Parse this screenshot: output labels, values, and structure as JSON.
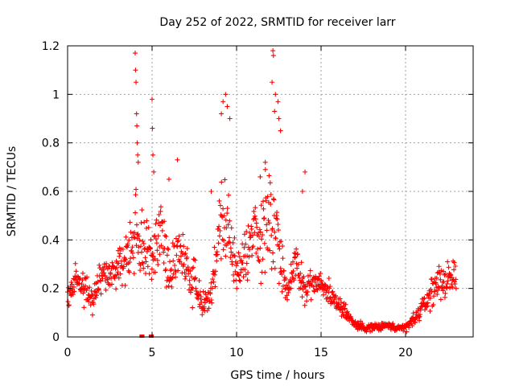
{
  "chart_data": {
    "type": "scatter",
    "title": "Day 252 of 2022, SRMTID for receiver larr",
    "xlabel": "GPS time / hours",
    "ylabel": "SRMTID / TECUs",
    "xlim": [
      0,
      24
    ],
    "ylim": [
      0,
      1.2
    ],
    "xticks": [
      0,
      5,
      10,
      15,
      20
    ],
    "xtick_labels": [
      "0",
      "5",
      "10",
      "15",
      "20"
    ],
    "yticks": [
      0,
      0.2,
      0.4,
      0.6,
      0.8,
      1,
      1.2
    ],
    "ytick_labels": [
      "0",
      "0.2",
      "0.4",
      "0.6",
      "0.8",
      "1",
      "1.2"
    ],
    "grid": true,
    "marker": "plus",
    "marker_color": "#ff0000",
    "series": [
      {
        "name": "SRMTID",
        "profile_description": "Dense scatter of 2-minute samples over 0-23 h",
        "envelope": {
          "t": [
            0,
            0.5,
            1,
            1.5,
            2,
            2.5,
            3,
            3.5,
            4,
            4.5,
            5,
            5.5,
            6,
            6.5,
            7,
            7.5,
            8,
            8.5,
            9,
            9.5,
            10,
            10.5,
            11,
            11.5,
            12,
            12.5,
            13,
            13.5,
            14,
            14.5,
            15,
            15.5,
            16,
            16.5,
            17,
            17.5,
            18,
            18.5,
            19,
            19.5,
            20,
            20.5,
            21,
            21.5,
            22,
            22.5,
            23
          ],
          "center": [
            0.16,
            0.24,
            0.2,
            0.15,
            0.27,
            0.25,
            0.3,
            0.32,
            0.44,
            0.38,
            0.3,
            0.45,
            0.25,
            0.38,
            0.28,
            0.25,
            0.12,
            0.17,
            0.45,
            0.48,
            0.25,
            0.32,
            0.42,
            0.38,
            0.55,
            0.35,
            0.2,
            0.3,
            0.2,
            0.22,
            0.22,
            0.18,
            0.14,
            0.1,
            0.05,
            0.04,
            0.04,
            0.04,
            0.05,
            0.03,
            0.04,
            0.07,
            0.12,
            0.18,
            0.24,
            0.22,
            0.26
          ],
          "spread": [
            0.06,
            0.1,
            0.12,
            0.08,
            0.1,
            0.1,
            0.14,
            0.15,
            0.25,
            0.2,
            0.2,
            0.18,
            0.12,
            0.16,
            0.15,
            0.15,
            0.08,
            0.1,
            0.3,
            0.3,
            0.12,
            0.2,
            0.22,
            0.25,
            0.35,
            0.2,
            0.1,
            0.14,
            0.1,
            0.1,
            0.08,
            0.07,
            0.06,
            0.05,
            0.03,
            0.025,
            0.025,
            0.025,
            0.025,
            0.02,
            0.025,
            0.04,
            0.06,
            0.08,
            0.1,
            0.1,
            0.1
          ]
        },
        "highlights": [
          {
            "t": 4.0,
            "v": 1.17
          },
          {
            "t": 4.02,
            "v": 1.1
          },
          {
            "t": 4.05,
            "v": 1.05
          },
          {
            "t": 4.08,
            "v": 0.92
          },
          {
            "t": 4.1,
            "v": 0.87
          },
          {
            "t": 4.12,
            "v": 0.8
          },
          {
            "t": 4.15,
            "v": 0.75
          },
          {
            "t": 4.18,
            "v": 0.72
          },
          {
            "t": 5.0,
            "v": 0.98
          },
          {
            "t": 5.02,
            "v": 0.86
          },
          {
            "t": 5.05,
            "v": 0.75
          },
          {
            "t": 5.1,
            "v": 0.68
          },
          {
            "t": 9.1,
            "v": 0.92
          },
          {
            "t": 9.2,
            "v": 0.97
          },
          {
            "t": 9.35,
            "v": 1.0
          },
          {
            "t": 9.45,
            "v": 0.95
          },
          {
            "t": 9.6,
            "v": 0.9
          },
          {
            "t": 12.15,
            "v": 1.18
          },
          {
            "t": 12.18,
            "v": 1.16
          },
          {
            "t": 12.1,
            "v": 1.05
          },
          {
            "t": 12.3,
            "v": 1.0
          },
          {
            "t": 12.45,
            "v": 0.97
          },
          {
            "t": 12.5,
            "v": 0.9
          },
          {
            "t": 12.6,
            "v": 0.85
          },
          {
            "t": 12.25,
            "v": 0.93
          },
          {
            "t": 14.05,
            "v": 0.68
          },
          {
            "t": 13.9,
            "v": 0.6
          },
          {
            "t": 6.5,
            "v": 0.73
          },
          {
            "t": 6.0,
            "v": 0.65
          },
          {
            "t": 8.5,
            "v": 0.6
          },
          {
            "t": 11.4,
            "v": 0.66
          },
          {
            "t": 11.7,
            "v": 0.72
          }
        ],
        "zero_markers": [
          4.35,
          4.45,
          4.9,
          5.0
        ]
      }
    ]
  }
}
